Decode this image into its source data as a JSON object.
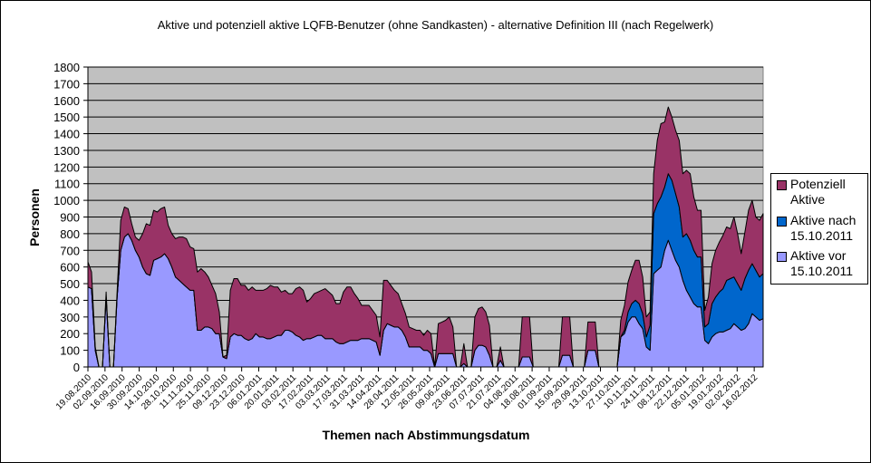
{
  "chart_data": {
    "type": "area",
    "stacked": true,
    "title": "Aktive und potenziell aktive LQFB-Benutzer (ohne Sandkasten) - alternative Definition III (nach Regelwerk)",
    "xlabel": "Themen nach Abstimmungsdatum",
    "ylabel": "Personen",
    "ylim": [
      0,
      1800
    ],
    "yticks": [
      0,
      100,
      200,
      300,
      400,
      500,
      600,
      700,
      800,
      900,
      1000,
      1100,
      1200,
      1300,
      1400,
      1500,
      1600,
      1700,
      1800
    ],
    "grid": true,
    "legend_position": "right",
    "colors": {
      "potenziell_aktive": "#993366",
      "aktive_nach": "#0066CC",
      "aktive_vor": "#9999FF",
      "plot_bg": "#C0C0C0"
    },
    "legend": [
      {
        "label": "Potenziell Aktive",
        "color": "#993366"
      },
      {
        "label": "Aktive nach 15.10.2011",
        "color": "#0066CC"
      },
      {
        "label": "Aktive vor 15.10.2011",
        "color": "#9999FF"
      }
    ],
    "x_tick_labels": [
      "19.08.2010",
      "02.09.2010",
      "16.09.2010",
      "30.09.2010",
      "14.10.2010",
      "28.10.2010",
      "11.11.2010",
      "25.11.2010",
      "09.12.2010",
      "23.12.2010",
      "06.01.2011",
      "20.01.2011",
      "03.02.2011",
      "17.02.2011",
      "03.03.2011",
      "17.03.2011",
      "31.03.2011",
      "14.04.2011",
      "28.04.2011",
      "12.05.2011",
      "26.05.2011",
      "09.06.2011",
      "23.06.2011",
      "07.07.2011",
      "21.07.2011",
      "04.08.2011",
      "18.08.2011",
      "01.09.2011",
      "15.09.2011",
      "29.09.2011",
      "13.10.2011",
      "27.10.2011",
      "10.11.2011",
      "24.11.2011",
      "08.12.2011",
      "22.12.2011",
      "05.01.2012",
      "19.01.2012",
      "02.02.2012",
      "16.02.2012"
    ],
    "x": [
      0,
      2,
      4,
      6,
      8,
      10,
      12,
      14,
      16,
      18,
      20,
      22,
      24,
      26,
      28,
      30,
      32,
      34,
      36,
      38,
      40,
      42,
      44,
      46,
      48,
      50,
      52,
      54,
      56,
      58,
      60,
      62,
      64,
      66,
      68,
      70,
      72,
      74,
      76,
      78,
      80,
      82,
      84,
      86,
      88,
      90,
      92,
      94,
      96,
      98,
      100,
      102,
      104,
      106,
      108,
      110,
      112,
      114,
      116,
      118,
      120,
      122,
      124,
      126,
      128,
      130,
      132,
      134,
      136,
      138,
      140,
      142,
      144,
      146,
      148,
      150,
      152,
      154,
      156,
      158,
      160,
      162,
      164,
      166,
      168,
      170,
      172,
      174,
      176,
      178,
      180,
      182,
      184,
      186,
      188,
      190,
      192,
      194,
      196,
      198,
      200,
      202,
      204,
      206,
      208,
      210,
      212,
      214,
      216,
      218,
      220,
      222,
      224,
      226,
      228,
      230,
      232,
      234,
      236,
      238,
      240,
      242,
      244,
      246,
      248,
      250,
      252,
      254,
      256,
      258,
      260,
      262,
      264,
      266,
      268,
      270,
      272,
      274,
      276,
      278,
      280,
      282,
      284,
      286,
      288,
      290,
      292,
      294,
      296,
      298,
      300,
      302,
      304,
      306,
      308,
      310,
      312,
      314,
      316,
      318,
      320,
      322,
      324,
      326,
      328,
      330,
      332,
      334,
      336,
      338,
      340,
      342,
      344,
      346,
      348,
      350,
      352,
      354,
      356,
      358,
      360,
      362,
      364,
      366,
      368,
      370
    ],
    "series": [
      {
        "name": "Aktive vor 15.10.2011",
        "values": [
          480,
          470,
          100,
          0,
          0,
          420,
          0,
          0,
          420,
          700,
          780,
          800,
          760,
          700,
          660,
          600,
          560,
          550,
          640,
          650,
          660,
          680,
          650,
          600,
          540,
          520,
          500,
          480,
          460,
          460,
          220,
          220,
          240,
          240,
          230,
          200,
          200,
          60,
          50,
          180,
          200,
          190,
          190,
          170,
          160,
          170,
          200,
          180,
          180,
          170,
          170,
          180,
          190,
          190,
          220,
          220,
          210,
          190,
          180,
          160,
          170,
          170,
          180,
          190,
          190,
          170,
          170,
          170,
          150,
          140,
          140,
          150,
          160,
          160,
          160,
          170,
          170,
          170,
          160,
          150,
          70,
          220,
          260,
          250,
          240,
          240,
          220,
          180,
          120,
          120,
          120,
          120,
          100,
          100,
          80,
          0,
          80,
          80,
          80,
          80,
          80,
          0,
          0,
          20,
          0,
          0,
          100,
          130,
          130,
          120,
          70,
          0,
          0,
          40,
          0,
          0,
          0,
          0,
          0,
          60,
          60,
          60,
          0,
          0,
          0,
          0,
          0,
          0,
          0,
          0,
          70,
          70,
          70,
          0,
          0,
          0,
          0,
          100,
          100,
          100,
          0,
          0,
          0,
          0,
          0,
          0,
          180,
          200,
          270,
          300,
          300,
          260,
          230,
          120,
          100,
          560,
          580,
          600,
          700,
          760,
          700,
          640,
          600,
          520,
          460,
          420,
          380,
          360,
          360,
          160,
          140,
          180,
          200,
          210,
          210,
          220,
          230,
          260,
          240,
          220,
          230,
          260,
          320,
          300,
          280,
          290,
          300,
          310,
          320,
          330,
          330,
          120
        ]
      },
      {
        "name": "Aktive nach 15.10.2011",
        "values": [
          0,
          0,
          0,
          0,
          0,
          0,
          0,
          0,
          0,
          0,
          0,
          0,
          0,
          0,
          0,
          0,
          0,
          0,
          0,
          0,
          0,
          0,
          0,
          0,
          0,
          0,
          0,
          0,
          0,
          0,
          0,
          0,
          0,
          0,
          0,
          0,
          0,
          0,
          0,
          0,
          0,
          0,
          0,
          0,
          0,
          0,
          0,
          0,
          0,
          0,
          0,
          0,
          0,
          0,
          0,
          0,
          0,
          0,
          0,
          0,
          0,
          0,
          0,
          0,
          0,
          0,
          0,
          0,
          0,
          0,
          0,
          0,
          0,
          0,
          0,
          0,
          0,
          0,
          0,
          0,
          0,
          0,
          0,
          0,
          0,
          0,
          0,
          0,
          0,
          0,
          0,
          0,
          0,
          0,
          0,
          0,
          0,
          0,
          0,
          0,
          0,
          0,
          0,
          0,
          0,
          0,
          0,
          0,
          0,
          0,
          0,
          0,
          0,
          0,
          0,
          0,
          0,
          0,
          0,
          0,
          0,
          0,
          0,
          0,
          0,
          0,
          0,
          0,
          0,
          0,
          0,
          0,
          0,
          0,
          0,
          0,
          0,
          0,
          0,
          0,
          0,
          0,
          0,
          0,
          0,
          0,
          0,
          20,
          60,
          80,
          100,
          120,
          90,
          60,
          150,
          360,
          400,
          420,
          380,
          400,
          420,
          400,
          360,
          260,
          340,
          340,
          320,
          300,
          300,
          80,
          120,
          200,
          220,
          240,
          260,
          300,
          300,
          280,
          260,
          240,
          300,
          320,
          300,
          280,
          260,
          270,
          280,
          300,
          300,
          280,
          260,
          80
        ]
      },
      {
        "name": "Potenziell Aktive",
        "values": [
          150,
          100,
          20,
          0,
          0,
          30,
          0,
          0,
          30,
          180,
          180,
          150,
          100,
          80,
          100,
          200,
          300,
          300,
          300,
          280,
          290,
          280,
          200,
          200,
          230,
          260,
          280,
          290,
          260,
          250,
          350,
          370,
          330,
          300,
          260,
          240,
          130,
          0,
          20,
          280,
          330,
          340,
          300,
          320,
          300,
          310,
          260,
          280,
          280,
          300,
          320,
          300,
          290,
          260,
          240,
          220,
          230,
          280,
          300,
          300,
          220,
          240,
          260,
          260,
          270,
          300,
          280,
          260,
          230,
          240,
          310,
          330,
          320,
          280,
          250,
          200,
          200,
          200,
          180,
          160,
          110,
          300,
          260,
          240,
          220,
          200,
          160,
          140,
          120,
          110,
          100,
          100,
          90,
          120,
          120,
          0,
          180,
          190,
          200,
          220,
          160,
          0,
          0,
          120,
          0,
          0,
          200,
          220,
          230,
          210,
          180,
          0,
          0,
          80,
          0,
          0,
          0,
          0,
          0,
          240,
          240,
          240,
          0,
          0,
          0,
          0,
          0,
          0,
          0,
          0,
          230,
          230,
          230,
          0,
          0,
          0,
          0,
          170,
          170,
          170,
          0,
          0,
          0,
          0,
          0,
          0,
          100,
          150,
          180,
          200,
          240,
          260,
          220,
          120,
          80,
          240,
          380,
          440,
          390,
          400,
          380,
          380,
          400,
          380,
          380,
          400,
          320,
          280,
          280,
          100,
          160,
          240,
          280,
          300,
          320,
          320,
          300,
          360,
          300,
          220,
          280,
          360,
          380,
          320,
          340,
          360,
          340,
          280,
          300,
          350,
          310,
          100
        ]
      }
    ]
  }
}
